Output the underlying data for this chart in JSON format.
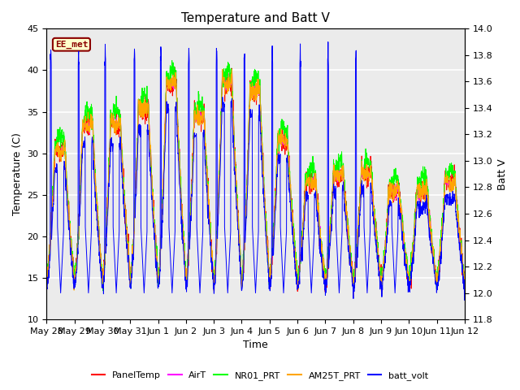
{
  "title": "Temperature and Batt V",
  "xlabel": "Time",
  "ylabel_left": "Temperature (C)",
  "ylabel_right": "Batt V",
  "annotation": "EE_met",
  "annotation_color": "#8B0000",
  "annotation_bg": "#FFFFCC",
  "ylim_left": [
    10,
    45
  ],
  "ylim_right": [
    11.8,
    14.0
  ],
  "yticks_left": [
    10,
    15,
    20,
    25,
    30,
    35,
    40,
    45
  ],
  "yticks_right": [
    11.8,
    12.0,
    12.2,
    12.4,
    12.6,
    12.8,
    13.0,
    13.2,
    13.4,
    13.6,
    13.8,
    14.0
  ],
  "plot_bg_color": "#EBEBEB",
  "grid_color": "white",
  "title_fontsize": 11,
  "axis_label_fontsize": 9,
  "tick_fontsize": 8,
  "tick_positions": [
    0,
    1,
    2,
    3,
    4,
    5,
    6,
    7,
    8,
    9,
    10,
    11,
    12,
    13,
    14,
    15
  ],
  "tick_labels": [
    "May 28",
    "May 29",
    "May 30",
    "May 31",
    "Jun 1",
    "Jun 2",
    "Jun 3",
    "Jun 4",
    "Jun 5",
    "Jun 6",
    "Jun 7",
    "Jun 8",
    "Jun 9",
    "Jun 10",
    "Jun 11",
    "Jun 12"
  ],
  "legend_entries": [
    {
      "label": "PanelTemp",
      "color": "red"
    },
    {
      "label": "AirT",
      "color": "magenta"
    },
    {
      "label": "NR01_PRT",
      "color": "lime"
    },
    {
      "label": "AM25T_PRT",
      "color": "orange"
    },
    {
      "label": "batt_volt",
      "color": "blue"
    }
  ]
}
